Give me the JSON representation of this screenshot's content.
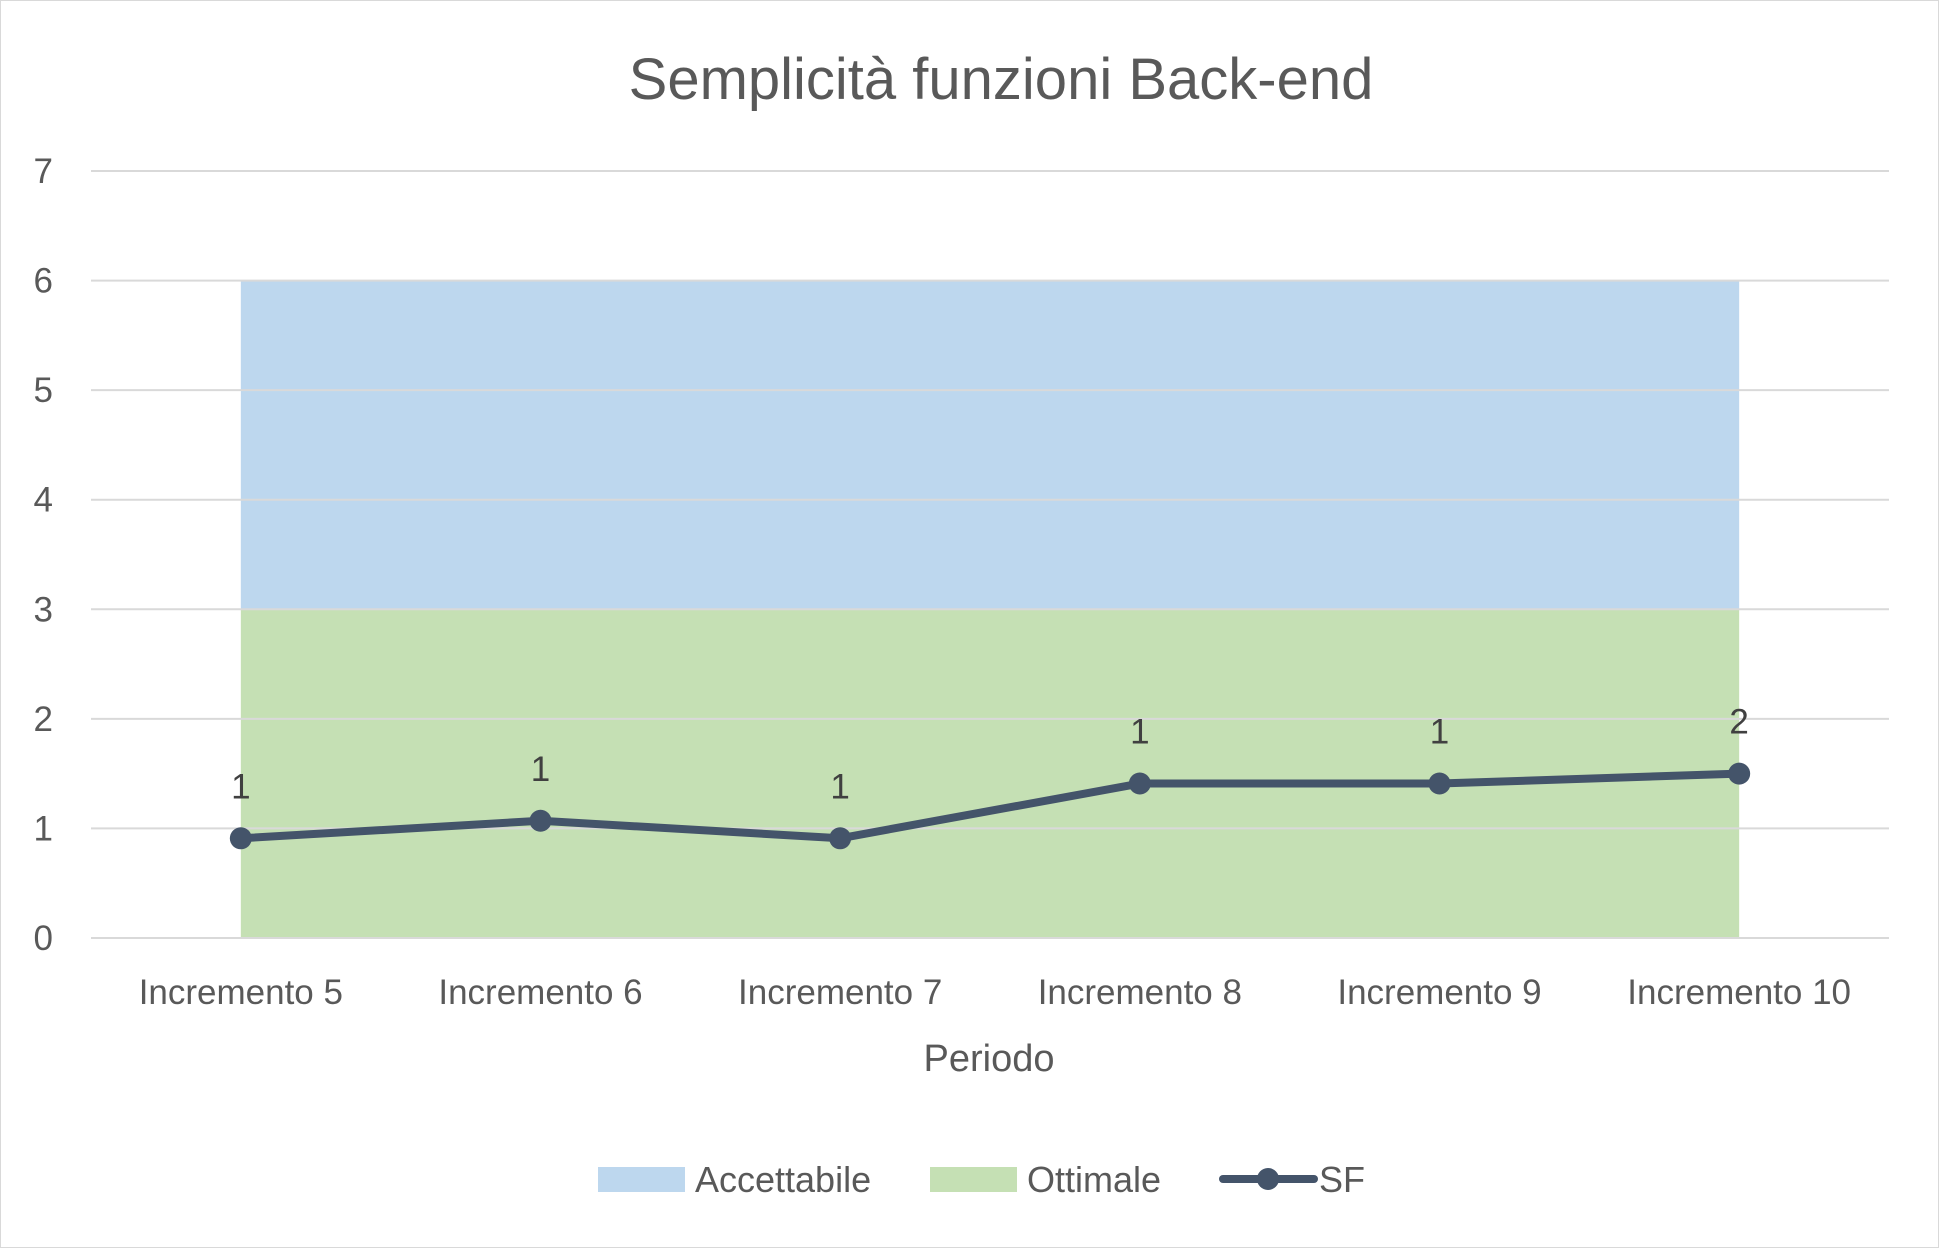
{
  "chart_data": {
    "type": "line",
    "title": "Semplicità funzioni Back-end",
    "xlabel": "Periodo",
    "ylabel": "",
    "categories": [
      "Incremento 5",
      "Incremento 6",
      "Incremento 7",
      "Incremento 8",
      "Incremento 9",
      "Incremento 10"
    ],
    "ylim": [
      0,
      7
    ],
    "yticks": [
      "0",
      "1",
      "2",
      "3",
      "4",
      "5",
      "6",
      "7"
    ],
    "grid": true,
    "legend_position": "bottom",
    "bands": [
      {
        "name": "Ottimale",
        "from": 0,
        "to": 3,
        "color": "#c5e0b4"
      },
      {
        "name": "Accettabile",
        "from": 3,
        "to": 6,
        "color": "#bdd7ee"
      }
    ],
    "series": [
      {
        "name": "SF",
        "color": "#44546a",
        "values": [
          0.91,
          1.07,
          0.91,
          1.41,
          1.41,
          1.5
        ],
        "data_labels": [
          "1",
          "1",
          "1",
          "1",
          "1",
          "2"
        ]
      }
    ]
  },
  "legend": {
    "items": [
      {
        "label": "Accettabile",
        "color": "#bdd7ee",
        "kind": "area"
      },
      {
        "label": "Ottimale",
        "color": "#c5e0b4",
        "kind": "area"
      },
      {
        "label": "SF",
        "color": "#44546a",
        "kind": "line-marker"
      }
    ]
  }
}
